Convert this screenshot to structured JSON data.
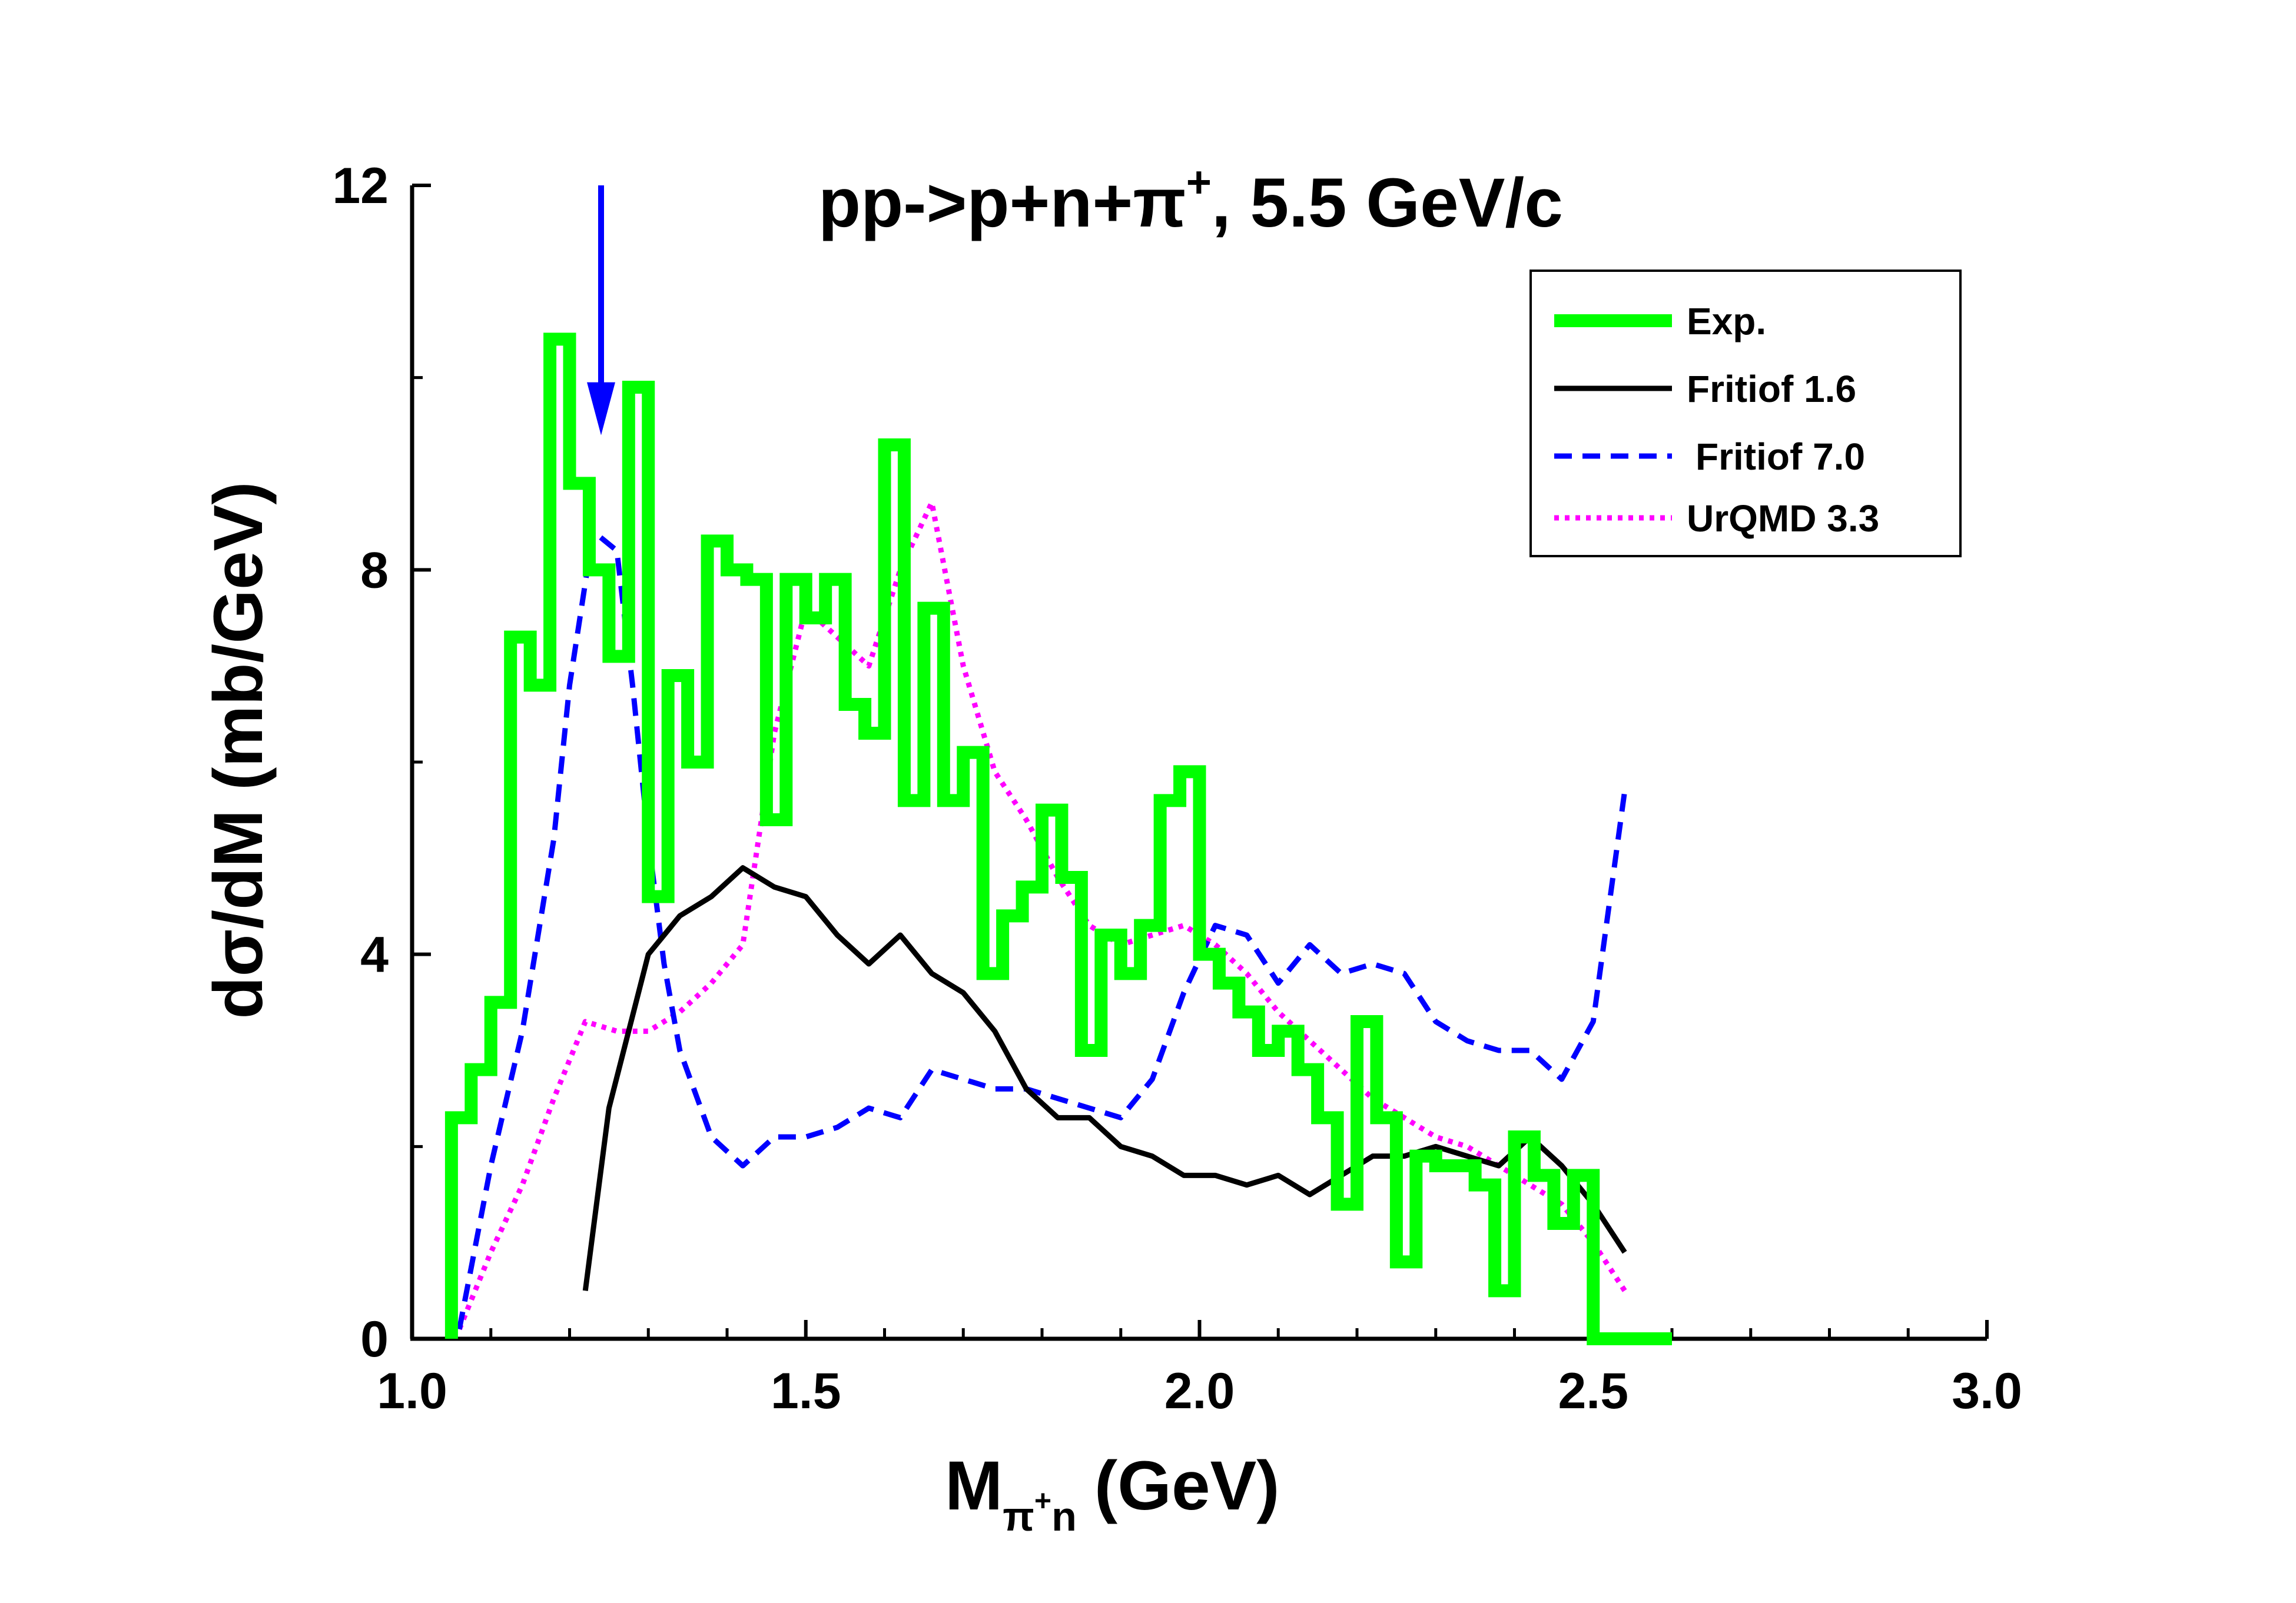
{
  "chart_data": {
    "type": "line",
    "title": {
      "main": "pp->p+n+",
      "pi": "π",
      "plus": "+",
      "tail": ", 5.5 GeV/c"
    },
    "xlabel": {
      "main": "M",
      "sub_pi": "π",
      "sub_plus": "+",
      "sub_n": "n",
      "unit": "(GeV)"
    },
    "ylabel": "dσ/dM (mb/GeV)",
    "xlim": [
      1.0,
      3.0
    ],
    "ylim": [
      0,
      12
    ],
    "xticks": [
      {
        "value": 1.0,
        "label": "1.0"
      },
      {
        "value": 1.5,
        "label": "1.5"
      },
      {
        "value": 2.0,
        "label": "2.0"
      },
      {
        "value": 2.5,
        "label": "2.5"
      },
      {
        "value": 3.0,
        "label": "3.0"
      }
    ],
    "yticks": [
      {
        "value": 0,
        "label": "0"
      },
      {
        "value": 4,
        "label": "4"
      },
      {
        "value": 8,
        "label": "8"
      },
      {
        "value": 12,
        "label": "12"
      }
    ],
    "annotation": {
      "type": "arrow",
      "x": 1.24,
      "y_from": 12.0,
      "y_to": 9.4,
      "color": "#0000ff"
    },
    "series": [
      {
        "name": "Exp.",
        "style": "step",
        "color": "#00ff00",
        "edges": [
          1.05,
          1.075,
          1.1,
          1.125,
          1.15,
          1.175,
          1.2,
          1.225,
          1.25,
          1.275,
          1.3,
          1.325,
          1.35,
          1.375,
          1.4,
          1.425,
          1.45,
          1.475,
          1.5,
          1.525,
          1.55,
          1.575,
          1.6,
          1.625,
          1.65,
          1.675,
          1.7,
          1.725,
          1.75,
          1.775,
          1.8,
          1.825,
          1.85,
          1.875,
          1.9,
          1.925,
          1.95,
          1.975,
          2.0,
          2.025,
          2.05,
          2.075,
          2.1,
          2.125,
          2.15,
          2.175,
          2.2,
          2.225,
          2.25,
          2.275,
          2.3,
          2.325,
          2.35,
          2.375,
          2.4,
          2.425,
          2.45,
          2.475,
          2.5,
          2.525,
          2.55,
          2.575,
          2.6
        ],
        "values": [
          2.3,
          2.8,
          3.5,
          7.3,
          6.8,
          10.4,
          8.9,
          8.0,
          7.1,
          9.9,
          4.6,
          6.9,
          6.0,
          8.3,
          8.0,
          7.9,
          5.4,
          7.9,
          7.5,
          7.9,
          6.6,
          6.3,
          9.3,
          5.6,
          7.6,
          5.6,
          6.1,
          3.8,
          4.4,
          4.7,
          5.5,
          4.8,
          3.0,
          4.2,
          3.8,
          4.3,
          5.6,
          5.9,
          4.0,
          3.7,
          3.4,
          3.0,
          3.2,
          2.8,
          2.3,
          1.4,
          3.3,
          2.3,
          0.8,
          1.9,
          1.8,
          1.8,
          1.6,
          0.5,
          2.1,
          1.7,
          1.2,
          1.7,
          0.0,
          0.0,
          0.0,
          0.0
        ]
      },
      {
        "name": "Fritiof 1.6",
        "style": "solid",
        "color": "#000000",
        "x": [
          1.22,
          1.25,
          1.3,
          1.34,
          1.38,
          1.42,
          1.46,
          1.5,
          1.54,
          1.58,
          1.62,
          1.66,
          1.7,
          1.74,
          1.78,
          1.82,
          1.86,
          1.9,
          1.94,
          1.98,
          2.02,
          2.06,
          2.1,
          2.14,
          2.18,
          2.22,
          2.26,
          2.3,
          2.34,
          2.38,
          2.42,
          2.46,
          2.5,
          2.54
        ],
        "y": [
          0.5,
          2.4,
          4.0,
          4.4,
          4.6,
          4.9,
          4.7,
          4.6,
          4.2,
          3.9,
          4.2,
          3.8,
          3.6,
          3.2,
          2.6,
          2.3,
          2.3,
          2.0,
          1.9,
          1.7,
          1.7,
          1.6,
          1.7,
          1.5,
          1.7,
          1.9,
          1.9,
          2.0,
          1.9,
          1.8,
          2.1,
          1.8,
          1.4,
          0.9
        ]
      },
      {
        "name": "Fritiof 7.0",
        "style": "dashed",
        "color": "#0000ff",
        "x": [
          1.06,
          1.1,
          1.14,
          1.18,
          1.2,
          1.23,
          1.26,
          1.28,
          1.3,
          1.32,
          1.34,
          1.38,
          1.42,
          1.46,
          1.5,
          1.54,
          1.58,
          1.62,
          1.66,
          1.7,
          1.74,
          1.78,
          1.82,
          1.86,
          1.9,
          1.94,
          1.98,
          2.02,
          2.06,
          2.1,
          2.14,
          2.18,
          2.22,
          2.26,
          2.3,
          2.34,
          2.38,
          2.42,
          2.46,
          2.5,
          2.54
        ],
        "y": [
          0.1,
          1.8,
          3.2,
          5.2,
          6.8,
          8.4,
          8.2,
          6.8,
          5.2,
          3.9,
          3.0,
          2.1,
          1.8,
          2.1,
          2.1,
          2.2,
          2.4,
          2.3,
          2.8,
          2.7,
          2.6,
          2.6,
          2.5,
          2.4,
          2.3,
          2.7,
          3.6,
          4.3,
          4.2,
          3.7,
          4.1,
          3.8,
          3.9,
          3.8,
          3.3,
          3.1,
          3.0,
          3.0,
          2.7,
          3.3,
          5.7
        ]
      },
      {
        "name": "UrQMD 3.3",
        "style": "dotted",
        "color": "#ff00ff",
        "x": [
          1.06,
          1.1,
          1.14,
          1.18,
          1.22,
          1.26,
          1.3,
          1.34,
          1.38,
          1.42,
          1.46,
          1.5,
          1.54,
          1.58,
          1.62,
          1.66,
          1.7,
          1.74,
          1.78,
          1.82,
          1.86,
          1.9,
          1.94,
          1.98,
          2.02,
          2.06,
          2.1,
          2.14,
          2.18,
          2.22,
          2.26,
          2.3,
          2.34,
          2.38,
          2.42,
          2.46,
          2.5,
          2.54
        ],
        "y": [
          0.1,
          0.9,
          1.6,
          2.5,
          3.3,
          3.2,
          3.2,
          3.4,
          3.7,
          4.1,
          6.3,
          7.6,
          7.3,
          7.0,
          8.0,
          8.7,
          7.0,
          5.9,
          5.4,
          4.8,
          4.3,
          4.1,
          4.2,
          4.3,
          4.1,
          3.8,
          3.4,
          3.1,
          2.8,
          2.5,
          2.3,
          2.1,
          2.0,
          1.8,
          1.6,
          1.4,
          1.0,
          0.5
        ]
      }
    ]
  }
}
